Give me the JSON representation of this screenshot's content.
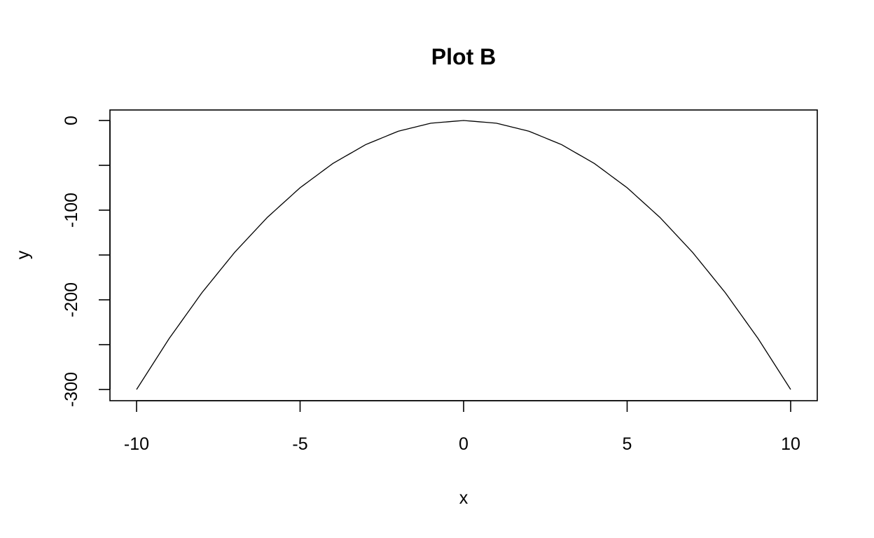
{
  "chart_data": {
    "type": "line",
    "title": "Plot B",
    "xlabel": "x",
    "ylabel": "y",
    "xlim": [
      -10,
      10
    ],
    "ylim": [
      -300,
      0
    ],
    "xticks": [
      -10,
      -5,
      0,
      5,
      10
    ],
    "yticks": [
      0,
      -50,
      -100,
      -150,
      -200,
      -250,
      -300
    ],
    "ytick_labels": [
      "0",
      "",
      "-100",
      "",
      "-200",
      "",
      "-300"
    ],
    "grid": false,
    "color": "#000000",
    "series": [
      {
        "x": [
          -10,
          -9,
          -8,
          -7,
          -6,
          -5,
          -4,
          -3,
          -2,
          -1,
          0,
          1,
          2,
          3,
          4,
          5,
          6,
          7,
          8,
          9,
          10
        ],
        "values": [
          -300,
          -243,
          -192,
          -147,
          -108,
          -75,
          -48,
          -27,
          -12,
          -3,
          0,
          -3,
          -12,
          -27,
          -48,
          -75,
          -108,
          -147,
          -192,
          -243,
          -300
        ]
      }
    ]
  }
}
